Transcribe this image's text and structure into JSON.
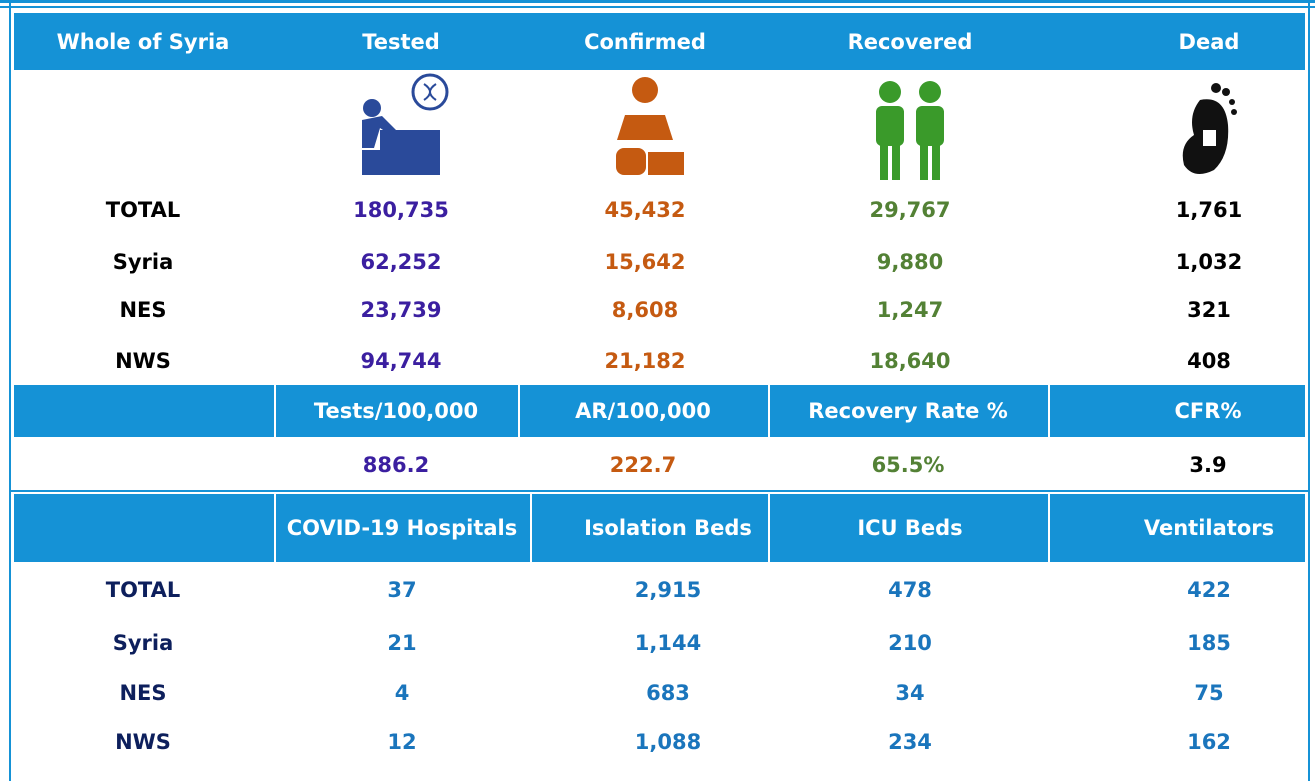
{
  "section1": {
    "header": [
      "Whole of Syria",
      "Tested",
      "Confirmed",
      "Recovered",
      "Dead"
    ],
    "rows": [
      {
        "label": "TOTAL",
        "values": [
          "180,735",
          "45,432",
          "29,767",
          "1,761"
        ]
      },
      {
        "label": "Syria",
        "values": [
          "62,252",
          "15,642",
          "9,880",
          "1,032"
        ]
      },
      {
        "label": "NES",
        "values": [
          "23,739",
          "8,608",
          "1,247",
          "321"
        ]
      },
      {
        "label": "NWS",
        "values": [
          "94,744",
          "21,182",
          "18,640",
          "408"
        ]
      }
    ]
  },
  "section2": {
    "header": [
      "Tests/100,000",
      "AR/100,000",
      "Recovery Rate %",
      "CFR%"
    ],
    "values": [
      "886.2",
      "222.7",
      "65.5%",
      "3.9"
    ]
  },
  "section3": {
    "header": [
      "COVID-19 Hospitals",
      "Isolation Beds",
      "ICU Beds",
      "Ventilators"
    ],
    "rows": [
      {
        "label": "TOTAL",
        "values": [
          "37",
          "2,915",
          "478",
          "422"
        ]
      },
      {
        "label": "Syria",
        "values": [
          "21",
          "1,144",
          "210",
          "185"
        ]
      },
      {
        "label": "NES",
        "values": [
          "4",
          "683",
          "34",
          "75"
        ]
      },
      {
        "label": "NWS",
        "values": [
          "12",
          "1,088",
          "234",
          "162"
        ]
      }
    ]
  }
}
